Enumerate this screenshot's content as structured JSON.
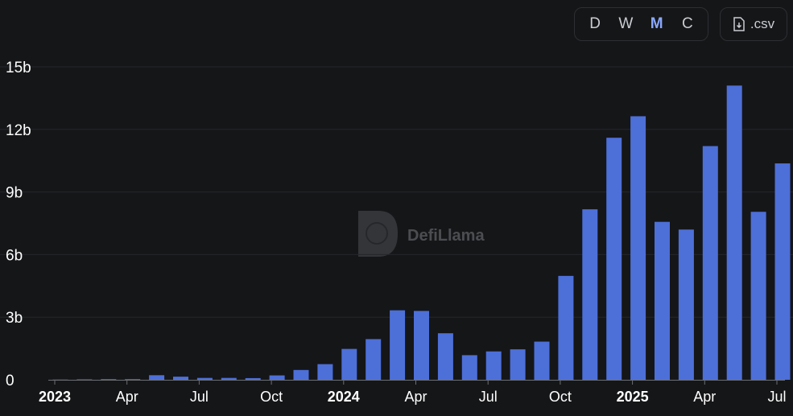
{
  "controls": {
    "granularity": [
      "D",
      "W",
      "M",
      "C"
    ],
    "active": "M",
    "csv_label": ".csv"
  },
  "watermark": "DefiLlama",
  "colors": {
    "bar": "#4d6fd8",
    "background": "#151618",
    "grid": "#24262a"
  },
  "chart_data": {
    "type": "bar",
    "title": "",
    "xlabel": "",
    "ylabel": "",
    "ylim": [
      0,
      15
    ],
    "y_unit": "b",
    "yticks": [
      "0",
      "3b",
      "6b",
      "9b",
      "12b",
      "15b"
    ],
    "x_ticks": [
      {
        "label": "2023",
        "bold": true
      },
      {
        "label": "Apr",
        "bold": false
      },
      {
        "label": "Jul",
        "bold": false
      },
      {
        "label": "Oct",
        "bold": false
      },
      {
        "label": "2024",
        "bold": true
      },
      {
        "label": "Apr",
        "bold": false
      },
      {
        "label": "Jul",
        "bold": false
      },
      {
        "label": "Oct",
        "bold": false
      },
      {
        "label": "2025",
        "bold": true
      },
      {
        "label": "Apr",
        "bold": false
      },
      {
        "label": "Jul",
        "bold": false
      }
    ],
    "categories": [
      "2023-01",
      "2023-02",
      "2023-03",
      "2023-04",
      "2023-05",
      "2023-06",
      "2023-07",
      "2023-08",
      "2023-09",
      "2023-10",
      "2023-11",
      "2023-12",
      "2024-01",
      "2024-02",
      "2024-03",
      "2024-04",
      "2024-05",
      "2024-06",
      "2024-07",
      "2024-08",
      "2024-09",
      "2024-10",
      "2024-11",
      "2024-12",
      "2025-01",
      "2025-02",
      "2025-03",
      "2025-04",
      "2025-05",
      "2025-06",
      "2025-07"
    ],
    "values": [
      0.01,
      0.02,
      0.03,
      0.03,
      0.22,
      0.15,
      0.09,
      0.09,
      0.08,
      0.21,
      0.47,
      0.75,
      1.48,
      1.95,
      3.33,
      3.3,
      2.23,
      1.18,
      1.36,
      1.46,
      1.83,
      4.98,
      8.17,
      11.6,
      12.63,
      7.57,
      7.2,
      11.2,
      14.1,
      8.05,
      10.37
    ],
    "grid": true,
    "legend": "none"
  }
}
